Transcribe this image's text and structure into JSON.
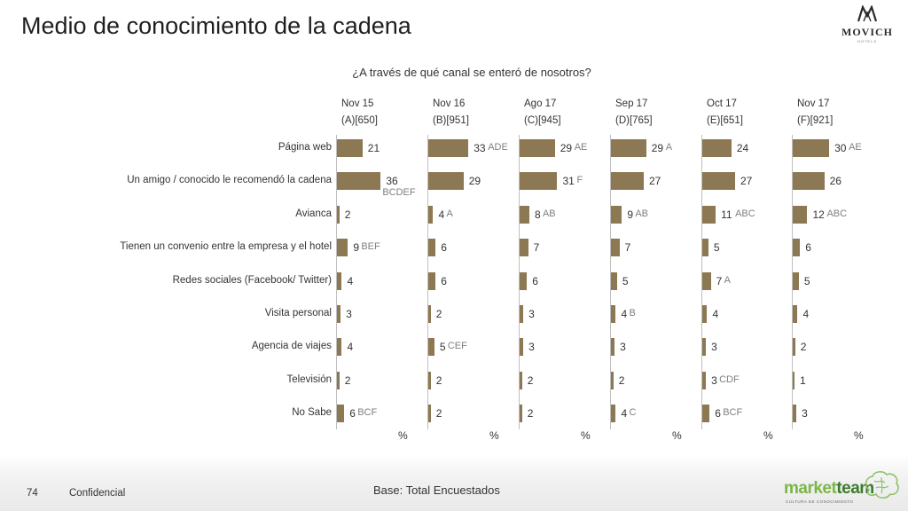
{
  "header": {
    "title": "Medio de conocimiento de la cadena",
    "logo_text": "MOVICH",
    "logo_subtext": "HOTELS"
  },
  "question": "¿A través de qué canal se enteró de nosotros?",
  "footer": {
    "page_number": "74",
    "confidential": "Confidencial",
    "base": "Base: Total Encuestados",
    "brand_market": "market",
    "brand_team": "team",
    "brand_sub": "CULTURA DE CONOCIMIENTO"
  },
  "colors": {
    "bar": "#8c7852",
    "significance_text": "#7f7f7f",
    "axis": "#bfbfbf"
  },
  "chart_data": {
    "type": "bar",
    "orientation": "horizontal",
    "unit_label": "%",
    "categories": [
      "Página web",
      "Un amigo / conocido le recomendó la cadena",
      "Avianca",
      "Tienen un convenio entre la empresa y el hotel",
      "Redes sociales (Facebook/ Twitter)",
      "Visita personal",
      "Agencia de viajes",
      "Televisión",
      "No Sabe"
    ],
    "series": [
      {
        "name": "Nov 15",
        "base": "(A)[650]",
        "values": [
          21,
          36,
          2,
          9,
          4,
          3,
          4,
          2,
          6
        ],
        "sig": [
          "",
          "BCDEF",
          "",
          "BEF",
          "",
          "",
          "",
          "",
          "BCF"
        ]
      },
      {
        "name": "Nov 16",
        "base": "(B)[951]",
        "values": [
          33,
          29,
          4,
          6,
          6,
          2,
          5,
          2,
          2
        ],
        "sig": [
          "ADE",
          "",
          "A",
          "",
          "",
          "",
          "CEF",
          "",
          ""
        ]
      },
      {
        "name": "Ago 17",
        "base": "(C)[945]",
        "values": [
          29,
          31,
          8,
          7,
          6,
          3,
          3,
          2,
          2
        ],
        "sig": [
          "AE",
          "F",
          "AB",
          "",
          "",
          "",
          "",
          "",
          ""
        ]
      },
      {
        "name": "Sep 17",
        "base": "(D)[765]",
        "values": [
          29,
          27,
          9,
          7,
          5,
          4,
          3,
          2,
          4
        ],
        "sig": [
          "A",
          "",
          "AB",
          "",
          "",
          "B",
          "",
          "",
          "C"
        ]
      },
      {
        "name": "Oct 17",
        "base": "(E)[651]",
        "values": [
          24,
          27,
          11,
          5,
          7,
          4,
          3,
          3,
          6
        ],
        "sig": [
          "",
          "",
          "ABC",
          "",
          "A",
          "",
          "",
          "CDF",
          "BCF"
        ]
      },
      {
        "name": "Nov 17",
        "base": "(F)[921]",
        "values": [
          30,
          26,
          12,
          6,
          5,
          4,
          2,
          1,
          3
        ],
        "sig": [
          "AE",
          "",
          "ABC",
          "",
          "",
          "",
          "",
          "",
          ""
        ]
      }
    ]
  }
}
